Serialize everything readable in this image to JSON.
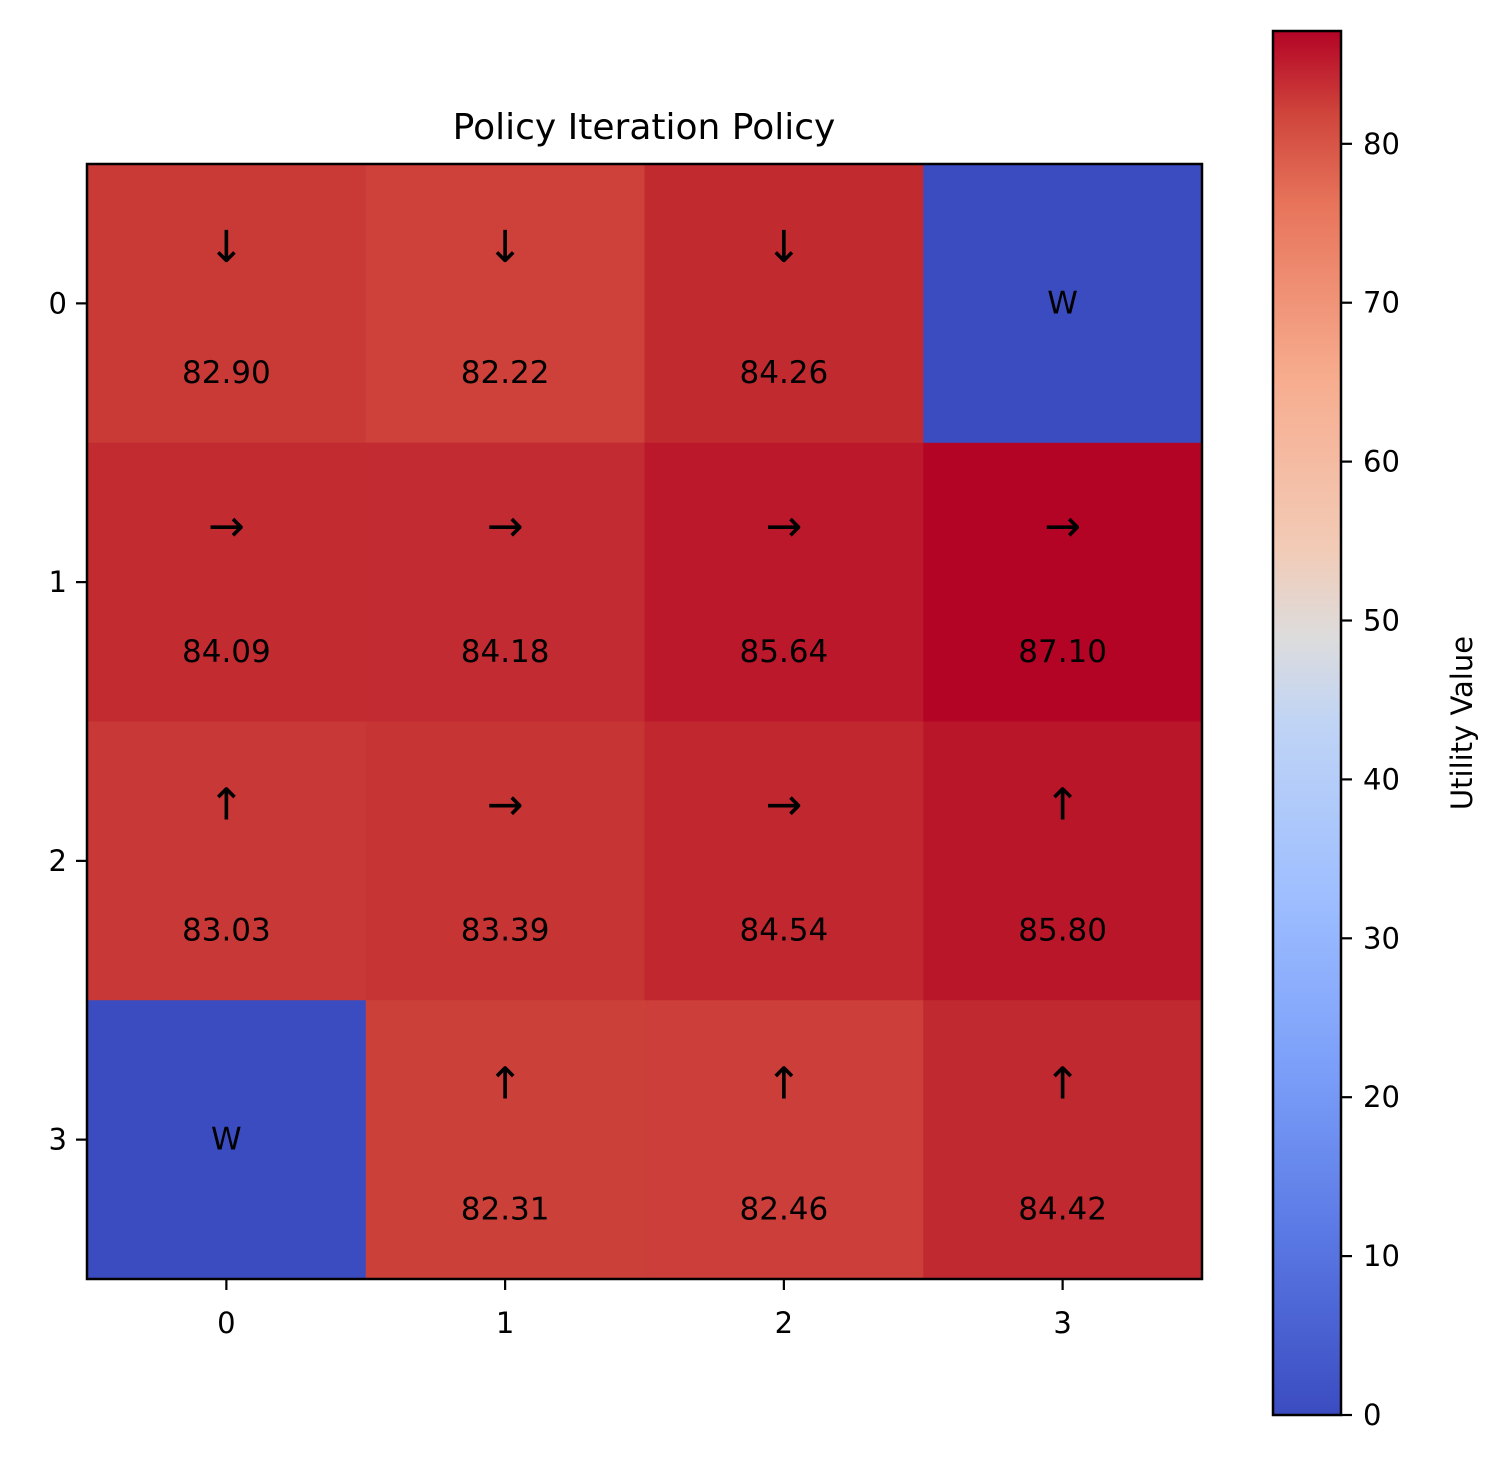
{
  "chart_data": {
    "type": "heatmap",
    "title": "Policy Iteration Policy",
    "xlabel": "",
    "ylabel": "",
    "x_ticks": [
      "0",
      "1",
      "2",
      "3"
    ],
    "y_ticks": [
      "0",
      "1",
      "2",
      "3"
    ],
    "grid": false,
    "colormap": "coolwarm",
    "color_range": [
      0,
      87.1
    ],
    "colorbar": {
      "label": "Utility Value",
      "ticks": [
        "0",
        "10",
        "20",
        "30",
        "40",
        "50",
        "60",
        "70",
        "80"
      ],
      "placement": "right"
    },
    "cells": [
      [
        {
          "value": 82.9,
          "label": "82.90",
          "action": "↓"
        },
        {
          "value": 82.22,
          "label": "82.22",
          "action": "↓"
        },
        {
          "value": 84.26,
          "label": "84.26",
          "action": "↓"
        },
        {
          "value": 0,
          "label": "",
          "action": "W"
        }
      ],
      [
        {
          "value": 84.09,
          "label": "84.09",
          "action": "→"
        },
        {
          "value": 84.18,
          "label": "84.18",
          "action": "→"
        },
        {
          "value": 85.64,
          "label": "85.64",
          "action": "→"
        },
        {
          "value": 87.1,
          "label": "87.10",
          "action": "→"
        }
      ],
      [
        {
          "value": 83.03,
          "label": "83.03",
          "action": "↑"
        },
        {
          "value": 83.39,
          "label": "83.39",
          "action": "→"
        },
        {
          "value": 84.54,
          "label": "84.54",
          "action": "→"
        },
        {
          "value": 85.8,
          "label": "85.80",
          "action": "↑"
        }
      ],
      [
        {
          "value": 0,
          "label": "",
          "action": "W"
        },
        {
          "value": 82.31,
          "label": "82.31",
          "action": "↑"
        },
        {
          "value": 82.46,
          "label": "82.46",
          "action": "↑"
        },
        {
          "value": 84.42,
          "label": "84.42",
          "action": "↑"
        }
      ]
    ]
  }
}
